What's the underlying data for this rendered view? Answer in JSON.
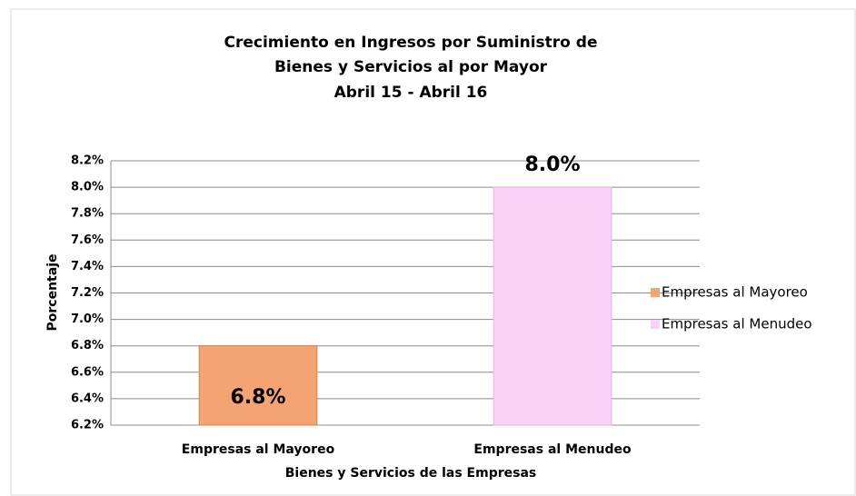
{
  "chart_data": {
    "type": "bar",
    "title": [
      "Crecimiento en Ingresos por Suministro de",
      "Bienes y Servicios al por Mayor",
      "Abril 15  - Abril 16"
    ],
    "x_label": "Bienes y Servicios  de las Empresas",
    "y_label": "Porcentaje",
    "categories": [
      "Empresas al Mayoreo",
      "Empresas al Menudeo"
    ],
    "series": [
      {
        "name": "Empresas al Mayoreo",
        "color": "#f4a373",
        "values": [
          6.8,
          null
        ],
        "value_labels": [
          "6.8%",
          null
        ]
      },
      {
        "name": "Empresas al Menudeo",
        "color": "#f9d2f9",
        "values": [
          null,
          8.0
        ],
        "value_labels": [
          null,
          "8.0%"
        ]
      }
    ],
    "ylim": [
      6.2,
      8.2
    ],
    "yticks": [
      {
        "value": 6.2,
        "label": "6.2%"
      },
      {
        "value": 6.4,
        "label": "6.4%"
      },
      {
        "value": 6.6,
        "label": "6.6%"
      },
      {
        "value": 6.8,
        "label": "6.8%"
      },
      {
        "value": 7.0,
        "label": "7.0%"
      },
      {
        "value": 7.2,
        "label": "7.2%"
      },
      {
        "value": 7.4,
        "label": "7.4%"
      },
      {
        "value": 7.6,
        "label": "7.6%"
      },
      {
        "value": 7.8,
        "label": "7.8%"
      },
      {
        "value": 8.0,
        "label": "8.0%"
      },
      {
        "value": 8.2,
        "label": "8.2%"
      }
    ],
    "grid": true,
    "legend": "right"
  }
}
